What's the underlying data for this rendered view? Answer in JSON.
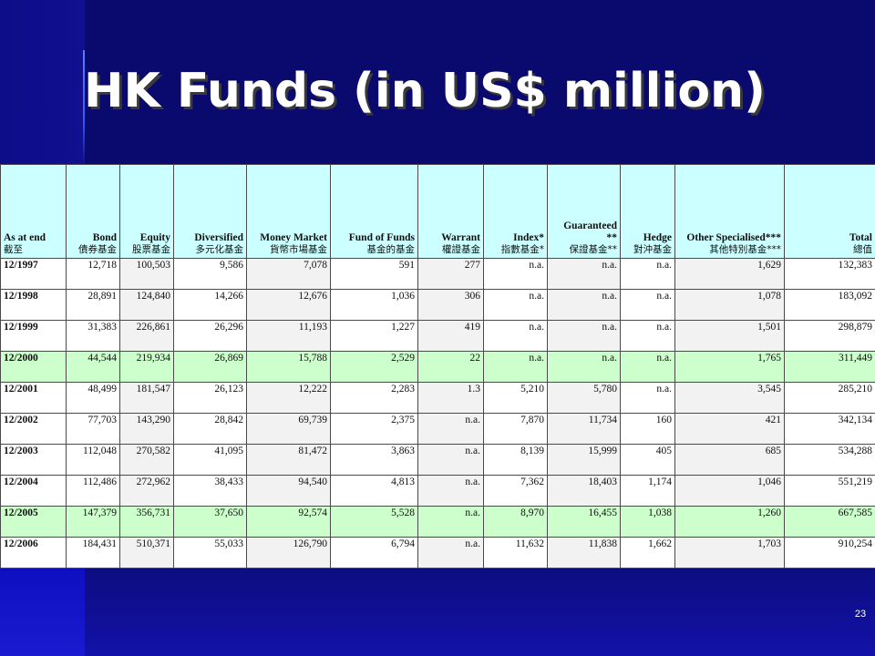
{
  "title": "HK Funds (in US$ million)",
  "page_number": "23",
  "table": {
    "headers": [
      {
        "en": "As at end",
        "zh": "截至"
      },
      {
        "en": "Bond",
        "zh": "債券基金"
      },
      {
        "en": "Equity",
        "zh": "股票基金"
      },
      {
        "en": "Diversified",
        "zh": "多元化基金"
      },
      {
        "en": "Money Market",
        "zh": "貨幣市場基金"
      },
      {
        "en": "Fund of Funds",
        "zh": "基金的基金"
      },
      {
        "en": "Warrant",
        "zh": "權證基金"
      },
      {
        "en": "Index*",
        "zh": "指數基金*"
      },
      {
        "en": "Guaranteed **",
        "zh": "保證基金**"
      },
      {
        "en": "Hedge",
        "zh": "對沖基金"
      },
      {
        "en": "Other Specialised***",
        "zh": "其他特別基金***"
      },
      {
        "en": "Total",
        "zh": "總值"
      }
    ],
    "rows": [
      [
        "12/1997",
        "12,718",
        "100,503",
        "9,586",
        "7,078",
        "591",
        "277",
        "n.a.",
        "n.a.",
        "n.a.",
        "1,629",
        "132,383"
      ],
      [
        "12/1998",
        "28,891",
        "124,840",
        "14,266",
        "12,676",
        "1,036",
        "306",
        "n.a.",
        "n.a.",
        "n.a.",
        "1,078",
        "183,092"
      ],
      [
        "12/1999",
        "31,383",
        "226,861",
        "26,296",
        "11,193",
        "1,227",
        "419",
        "n.a.",
        "n.a.",
        "n.a.",
        "1,501",
        "298,879"
      ],
      [
        "12/2000",
        "44,544",
        "219,934",
        "26,869",
        "15,788",
        "2,529",
        "22",
        "n.a.",
        "n.a.",
        "n.a.",
        "1,765",
        "311,449"
      ],
      [
        "12/2001",
        "48,499",
        "181,547",
        "26,123",
        "12,222",
        "2,283",
        "1.3",
        "5,210",
        "5,780",
        "n.a.",
        "3,545",
        "285,210"
      ],
      [
        "12/2002",
        "77,703",
        "143,290",
        "28,842",
        "69,739",
        "2,375",
        "n.a.",
        "7,870",
        "11,734",
        "160",
        "421",
        "342,134"
      ],
      [
        "12/2003",
        "112,048",
        "270,582",
        "41,095",
        "81,472",
        "3,863",
        "n.a.",
        "8,139",
        "15,999",
        "405",
        "685",
        "534,288"
      ],
      [
        "12/2004",
        "112,486",
        "272,962",
        "38,433",
        "94,540",
        "4,813",
        "n.a.",
        "7,362",
        "18,403",
        "1,174",
        "1,046",
        "551,219"
      ],
      [
        "12/2005",
        "147,379",
        "356,731",
        "37,650",
        "92,574",
        "5,528",
        "n.a.",
        "8,970",
        "16,455",
        "1,038",
        "1,260",
        "667,585"
      ],
      [
        "12/2006",
        "184,431",
        "510,371",
        "55,033",
        "126,790",
        "6,794",
        "n.a.",
        "11,632",
        "11,838",
        "1,662",
        "1,703",
        "910,254"
      ]
    ],
    "highlighted_rows": [
      "12/2000",
      "12/2005"
    ]
  },
  "colors": {
    "background": "#0a0a6e",
    "header_fill": "#ccffff",
    "highlight_fill": "#ccffcc",
    "title_text": "#ffffff"
  }
}
